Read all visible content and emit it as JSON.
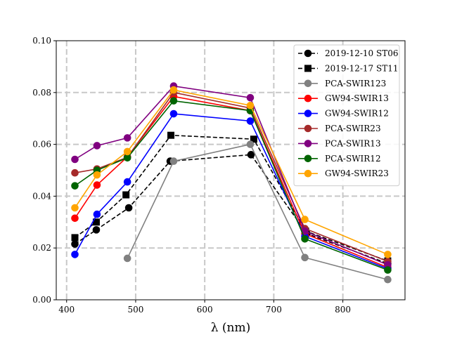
{
  "chart_data": {
    "type": "line",
    "title": "",
    "xlabel": "λ (nm)",
    "ylabel": "",
    "xlim": [
      385,
      890
    ],
    "ylim": [
      0.0,
      0.1
    ],
    "xticks": [
      400,
      500,
      600,
      700,
      800
    ],
    "yticks": [
      0.0,
      0.02,
      0.04,
      0.06,
      0.08,
      0.1
    ],
    "xtick_labels": [
      "400",
      "500",
      "600",
      "700",
      "800"
    ],
    "ytick_labels": [
      "0.00",
      "0.02",
      "0.04",
      "0.06",
      "0.08",
      "0.10"
    ],
    "grid": true,
    "grid_style": "dashed",
    "legend_position": "top-right",
    "series": [
      {
        "name": "2019-12-10 ST06",
        "color": "#000000",
        "marker": "circle",
        "dashed": true,
        "x": [
          412,
          443,
          490,
          550,
          667,
          748,
          865
        ],
        "y": [
          0.0215,
          0.027,
          0.0355,
          0.0535,
          0.056,
          0.0255,
          0.014
        ]
      },
      {
        "name": "2019-12-17 ST11",
        "color": "#000000",
        "marker": "square",
        "dashed": true,
        "x": [
          412,
          443,
          486,
          551,
          671,
          746,
          865
        ],
        "y": [
          0.024,
          0.03,
          0.0405,
          0.0635,
          0.062,
          0.0265,
          0.015
        ]
      },
      {
        "name": "PCA-SWIR123",
        "color": "#808080",
        "marker": "circle",
        "dashed": false,
        "x": [
          488,
          555,
          666,
          745,
          865
        ],
        "y": [
          0.016,
          0.0535,
          0.06,
          0.0163,
          0.0078
        ]
      },
      {
        "name": "GW94-SWIR13",
        "color": "#ff0000",
        "marker": "circle",
        "dashed": false,
        "x": [
          412,
          444,
          488,
          555,
          666,
          745,
          865
        ],
        "y": [
          0.0315,
          0.0443,
          0.0552,
          0.0785,
          0.073,
          0.0255,
          0.0125
        ]
      },
      {
        "name": "GW94-SWIR12",
        "color": "#0000ff",
        "marker": "circle",
        "dashed": false,
        "x": [
          412,
          444,
          488,
          555,
          666,
          745,
          865
        ],
        "y": [
          0.0175,
          0.033,
          0.0455,
          0.0718,
          0.069,
          0.0245,
          0.012
        ]
      },
      {
        "name": "PCA-SWIR23",
        "color": "#a52a2a",
        "marker": "circle",
        "dashed": false,
        "x": [
          412,
          444,
          488,
          555,
          666,
          745,
          865
        ],
        "y": [
          0.049,
          0.0505,
          0.055,
          0.08,
          0.074,
          0.0275,
          0.0148
        ]
      },
      {
        "name": "PCA-SWIR13",
        "color": "#800080",
        "marker": "circle",
        "dashed": false,
        "x": [
          412,
          444,
          488,
          555,
          666,
          745,
          865
        ],
        "y": [
          0.0542,
          0.0595,
          0.0625,
          0.0825,
          0.078,
          0.0265,
          0.0135
        ]
      },
      {
        "name": "PCA-SWIR12",
        "color": "#006400",
        "marker": "circle",
        "dashed": false,
        "x": [
          412,
          444,
          488,
          555,
          666,
          745,
          865
        ],
        "y": [
          0.044,
          0.05,
          0.0548,
          0.0768,
          0.073,
          0.0235,
          0.0115
        ]
      },
      {
        "name": "GW94-SWIR23",
        "color": "#ffa500",
        "marker": "circle",
        "dashed": false,
        "x": [
          412,
          444,
          488,
          555,
          666,
          745,
          865
        ],
        "y": [
          0.0355,
          0.0482,
          0.0572,
          0.081,
          0.075,
          0.031,
          0.0175
        ]
      }
    ]
  }
}
